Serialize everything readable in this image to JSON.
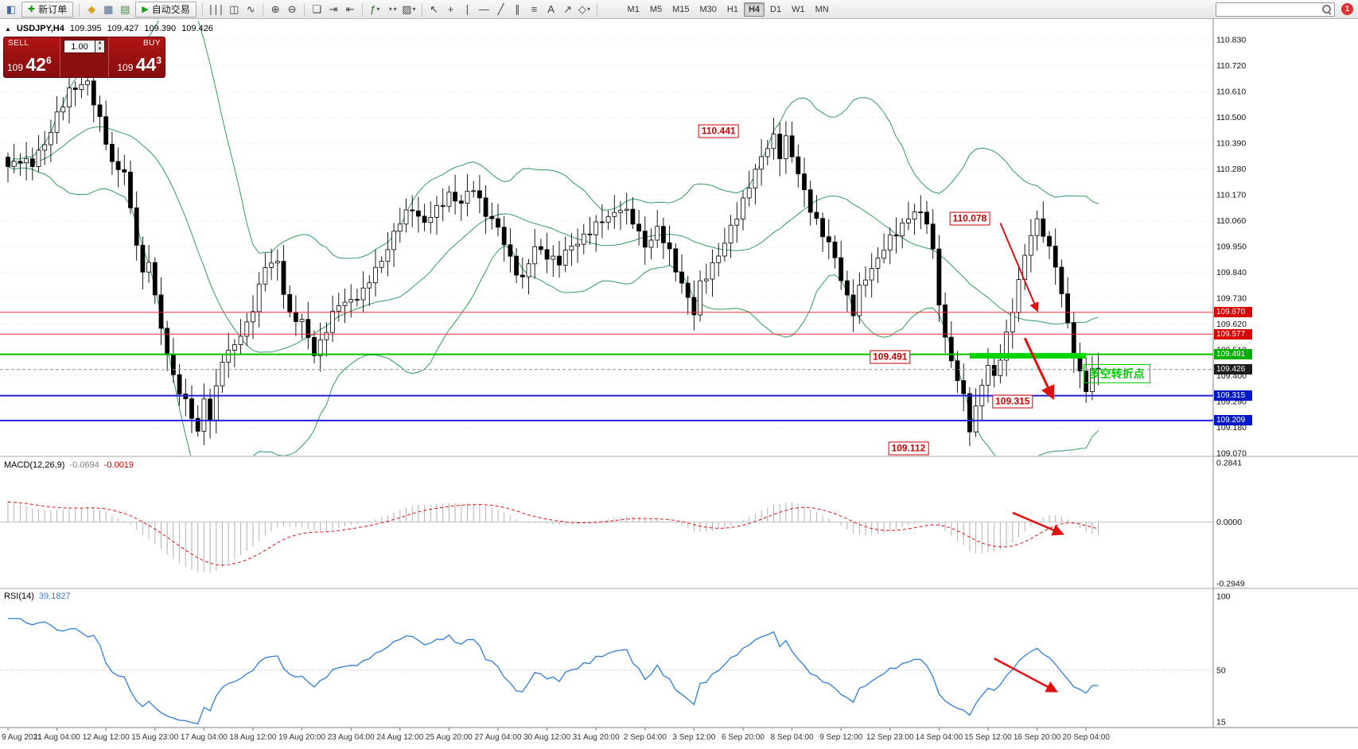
{
  "window": {
    "badge": "1"
  },
  "toolbar": {
    "caret": "▾",
    "search_value": "",
    "active_timeframe": "H4",
    "timeframes": [
      "M1",
      "M5",
      "M15",
      "M30",
      "H1",
      "H4",
      "D1",
      "W1",
      "MN"
    ],
    "items": [
      {
        "type": "icon",
        "name": "new-chart-icon",
        "glyph": "◧",
        "color": "#44699d"
      },
      {
        "type": "button",
        "name": "new-order-button",
        "glyph": "✚",
        "glyph_color": "#189818",
        "label": "新订单"
      },
      {
        "type": "sep"
      },
      {
        "type": "icon",
        "name": "metaeditor-icon",
        "glyph": "◆",
        "color": "#d9a520"
      },
      {
        "type": "icon",
        "name": "market-watch-icon",
        "glyph": "▦",
        "color": "#44699d"
      },
      {
        "type": "icon",
        "name": "strategy-tester-icon",
        "glyph": "▤",
        "color": "#3f8a46"
      },
      {
        "type": "button",
        "name": "autotrading-button",
        "glyph": "▶",
        "glyph_color": "#18a018",
        "label": "自动交易"
      },
      {
        "type": "sep"
      },
      {
        "type": "icon",
        "name": "bar-chart-icon",
        "glyph": "∣∣∣",
        "color": "#444444"
      },
      {
        "type": "icon",
        "name": "candlestick-chart-icon",
        "glyph": "◫",
        "color": "#444444"
      },
      {
        "type": "icon",
        "name": "line-chart-icon",
        "glyph": "∿",
        "color": "#444444"
      },
      {
        "type": "sep"
      },
      {
        "type": "icon",
        "name": "zoom-in-icon",
        "glyph": "⊕",
        "color": "#444444"
      },
      {
        "type": "icon",
        "name": "zoom-out-icon",
        "glyph": "⊖",
        "color": "#444444"
      },
      {
        "type": "sep"
      },
      {
        "type": "icon",
        "name": "tile-windows-icon",
        "glyph": "❏",
        "color": "#444444"
      },
      {
        "type": "icon",
        "name": "auto-scroll-icon",
        "glyph": "⇥",
        "color": "#444444"
      },
      {
        "type": "icon",
        "name": "chart-shift-icon",
        "glyph": "⇤",
        "color": "#444444"
      },
      {
        "type": "sep"
      },
      {
        "type": "dropdown",
        "name": "indicators-button",
        "glyph": "ƒ",
        "color": "#18741f"
      },
      {
        "type": "dropdown",
        "name": "periods-button",
        "glyph": "◔",
        "color": "#444444"
      },
      {
        "type": "dropdown",
        "name": "templates-button",
        "glyph": "▨",
        "color": "#444444"
      },
      {
        "type": "sep"
      },
      {
        "type": "icon",
        "name": "cursor-icon",
        "glyph": "↖",
        "color": "#444444"
      },
      {
        "type": "icon",
        "name": "crosshair-icon",
        "glyph": "+",
        "color": "#444444"
      },
      {
        "type": "icon",
        "name": "vertical-line-icon",
        "glyph": "∣",
        "color": "#444444"
      },
      {
        "type": "icon",
        "name": "horizontal-line-icon",
        "glyph": "—",
        "color": "#444444"
      },
      {
        "type": "icon",
        "name": "trendline-icon",
        "glyph": "╱",
        "color": "#444444"
      },
      {
        "type": "icon",
        "name": "channel-icon",
        "glyph": "∥",
        "color": "#444444"
      },
      {
        "type": "icon",
        "name": "fibonacci-icon",
        "glyph": "≡",
        "color": "#444444"
      },
      {
        "type": "icon",
        "name": "text-tool-icon",
        "glyph": "A",
        "color": "#444444"
      },
      {
        "type": "icon",
        "name": "arrow-tool-icon",
        "glyph": "↗",
        "color": "#444444"
      },
      {
        "type": "dropdown",
        "name": "shapes-button",
        "glyph": "◇",
        "color": "#444444"
      },
      {
        "type": "sep"
      }
    ]
  },
  "chart_title": {
    "collapse_icon": "▲",
    "symbol_period": "USDJPY,H4",
    "open": "109.395",
    "high": "109.427",
    "low": "109.390",
    "close": "109.426"
  },
  "one_click": {
    "sell_label": "SELL",
    "buy_label": "BUY",
    "volume": "1.00",
    "sell_small": "109 ",
    "sell_big": "42",
    "sell_sup": "6",
    "buy_small": "109 ",
    "buy_big": "44",
    "buy_sup": "3",
    "spinner_up": "▲",
    "spinner_down": "▼"
  },
  "price_scale": {
    "labels": [
      "110.830",
      "110.720",
      "110.610",
      "110.500",
      "110.390",
      "110.280",
      "110.170",
      "110.060",
      "109.950",
      "109.840",
      "109.730",
      "109.620",
      "109.510",
      "109.400",
      "109.290",
      "109.180",
      "109.070"
    ]
  },
  "time_scale": {
    "labels": [
      "9 Aug 2021",
      "11 Aug 04:00",
      "12 Aug 12:00",
      "15 Aug 23:00",
      "17 Aug 04:00",
      "18 Aug 12:00",
      "19 Aug 20:00",
      "23 Aug 04:00",
      "24 Aug 12:00",
      "25 Aug 20:00",
      "27 Aug 04:00",
      "30 Aug 12:00",
      "31 Aug 20:00",
      "2 Sep 04:00",
      "3 Sep 12:00",
      "6 Sep 20:00",
      "8 Sep 04:00",
      "9 Sep 12:00",
      "12 Sep 23:00",
      "14 Sep 04:00",
      "15 Sep 12:00",
      "16 Sep 20:00",
      "20 Sep 04:00"
    ]
  },
  "macd_panel": {
    "name": "MACD(12,26,9)",
    "value_main": "-0.0694",
    "value_signal": "-0.0019",
    "scale": [
      "0.2841",
      "0.0000",
      "-0.2949"
    ]
  },
  "rsi_panel": {
    "name": "RSI(14)",
    "value": "39.1827",
    "scale": [
      "100",
      "50",
      "15"
    ]
  },
  "chart_data": {
    "type": "candlestick",
    "symbol": "USDJPY",
    "timeframe": "H4",
    "y_min": 109.07,
    "y_max": 110.83,
    "y_step": 0.11,
    "candle_count": 179,
    "ticks_every": 8,
    "indicators": [
      {
        "name": "Bollinger Bands",
        "period": 20,
        "deviation": 2,
        "color": "#2e9e5b"
      },
      {
        "name": "MACD",
        "fast": 12,
        "slow": 26,
        "signal": 9,
        "hist_color": "#b2b2b2",
        "signal_color": "#e01010"
      },
      {
        "name": "RSI",
        "period": 14,
        "color": "#2f7ed8"
      }
    ],
    "close_anchors": [
      [
        0,
        110.28
      ],
      [
        2,
        110.33
      ],
      [
        4,
        110.3
      ],
      [
        6,
        110.38
      ],
      [
        8,
        110.52
      ],
      [
        10,
        110.6
      ],
      [
        13,
        110.66
      ],
      [
        15,
        110.48
      ],
      [
        17,
        110.3
      ],
      [
        19,
        110.28
      ],
      [
        20,
        110.1
      ],
      [
        22,
        109.82
      ],
      [
        23,
        109.9
      ],
      [
        25,
        109.6
      ],
      [
        27,
        109.38
      ],
      [
        29,
        109.3
      ],
      [
        31,
        109.16
      ],
      [
        32,
        109.28
      ],
      [
        33,
        109.22
      ],
      [
        35,
        109.48
      ],
      [
        37,
        109.52
      ],
      [
        39,
        109.62
      ],
      [
        41,
        109.78
      ],
      [
        42,
        109.86
      ],
      [
        44,
        109.88
      ],
      [
        46,
        109.66
      ],
      [
        48,
        109.62
      ],
      [
        50,
        109.5
      ],
      [
        52,
        109.6
      ],
      [
        54,
        109.7
      ],
      [
        56,
        109.73
      ],
      [
        58,
        109.75
      ],
      [
        60,
        109.85
      ],
      [
        62,
        109.95
      ],
      [
        64,
        110.05
      ],
      [
        66,
        110.12
      ],
      [
        68,
        110.05
      ],
      [
        70,
        110.1
      ],
      [
        72,
        110.18
      ],
      [
        74,
        110.13
      ],
      [
        76,
        110.2
      ],
      [
        78,
        110.1
      ],
      [
        80,
        110.02
      ],
      [
        82,
        109.9
      ],
      [
        84,
        109.81
      ],
      [
        86,
        109.94
      ],
      [
        88,
        109.92
      ],
      [
        90,
        109.88
      ],
      [
        92,
        109.95
      ],
      [
        94,
        110.0
      ],
      [
        96,
        110.03
      ],
      [
        98,
        110.08
      ],
      [
        100,
        110.12
      ],
      [
        102,
        110.05
      ],
      [
        104,
        109.96
      ],
      [
        106,
        110.02
      ],
      [
        108,
        109.92
      ],
      [
        110,
        109.8
      ],
      [
        112,
        109.66
      ],
      [
        113,
        109.78
      ],
      [
        115,
        109.88
      ],
      [
        117,
        109.96
      ],
      [
        119,
        110.08
      ],
      [
        121,
        110.22
      ],
      [
        123,
        110.32
      ],
      [
        125,
        110.42
      ],
      [
        126,
        110.35
      ],
      [
        127,
        110.41
      ],
      [
        129,
        110.25
      ],
      [
        131,
        110.12
      ],
      [
        133,
        110.0
      ],
      [
        135,
        109.9
      ],
      [
        137,
        109.74
      ],
      [
        138,
        109.67
      ],
      [
        139,
        109.76
      ],
      [
        141,
        109.86
      ],
      [
        143,
        109.95
      ],
      [
        145,
        110.0
      ],
      [
        147,
        110.08
      ],
      [
        148,
        110.11
      ],
      [
        150,
        110.05
      ],
      [
        151,
        109.92
      ],
      [
        152,
        109.72
      ],
      [
        153,
        109.57
      ],
      [
        154,
        109.46
      ],
      [
        156,
        109.3
      ],
      [
        157,
        109.18
      ],
      [
        158,
        109.27
      ],
      [
        159,
        109.37
      ],
      [
        160,
        109.44
      ],
      [
        161,
        109.38
      ],
      [
        163,
        109.58
      ],
      [
        165,
        109.8
      ],
      [
        167,
        110.0
      ],
      [
        168,
        110.06
      ],
      [
        169,
        110.02
      ],
      [
        171,
        109.86
      ],
      [
        173,
        109.62
      ],
      [
        174,
        109.5
      ],
      [
        175,
        109.41
      ],
      [
        176,
        109.34
      ],
      [
        177,
        109.41
      ],
      [
        178,
        109.43
      ]
    ],
    "levels": [
      {
        "price": 109.67,
        "label": "109.670",
        "color": "#f03030",
        "tag_bg": "#dd0000",
        "style": "solid",
        "width": 1
      },
      {
        "price": 109.577,
        "label": "109.577",
        "color": "#f03030",
        "tag_bg": "#dd0000",
        "style": "solid",
        "width": 1
      },
      {
        "price": 109.491,
        "label": "109.491",
        "color": "#00c000",
        "tag_bg": "#00b000",
        "style": "solid",
        "width": 2
      },
      {
        "price": 109.426,
        "label": "109.426",
        "color": "#909090",
        "tag_bg": "#1b1b1b",
        "style": "dash",
        "width": 1
      },
      {
        "price": 109.315,
        "label": "109.315",
        "color": "#2020dd",
        "tag_bg": "#0018c8",
        "style": "solid",
        "width": 2
      },
      {
        "price": 109.209,
        "label": "109.209",
        "color": "#2020dd",
        "tag_bg": "#0018c8",
        "style": "solid",
        "width": 2
      }
    ],
    "price_labels": [
      {
        "text": "110.441",
        "i": 116,
        "price": 110.44
      },
      {
        "text": "110.078",
        "i": 157,
        "price": 110.07
      },
      {
        "text": "109.491",
        "i": 144,
        "price": 109.48
      },
      {
        "text": "109.315",
        "i": 164,
        "price": 109.29
      },
      {
        "text": "109.112",
        "i": 147,
        "price": 109.09
      }
    ],
    "note": {
      "text": "多空转折点",
      "i": 181,
      "price": 109.41,
      "color": "#00cc00"
    },
    "green_bar": {
      "i1": 157,
      "i2": 176,
      "price": 109.485,
      "color": "#00d500",
      "thickness": 7
    },
    "arrows": [
      {
        "pane": "main",
        "i1": 162,
        "v1": 110.05,
        "i2": 168,
        "v2": 109.68,
        "w": 2
      },
      {
        "pane": "main",
        "i1": 166,
        "v1": 109.56,
        "i2": 170.5,
        "v2": 109.31,
        "w": 3
      },
      {
        "pane": "macd",
        "i1": 164,
        "v1": 0.045,
        "i2": 172,
        "v2": -0.055,
        "w": 2.5
      },
      {
        "pane": "rsi",
        "i1": 161,
        "v1": 58,
        "i2": 171,
        "v2": 36,
        "w": 2.5
      }
    ]
  }
}
